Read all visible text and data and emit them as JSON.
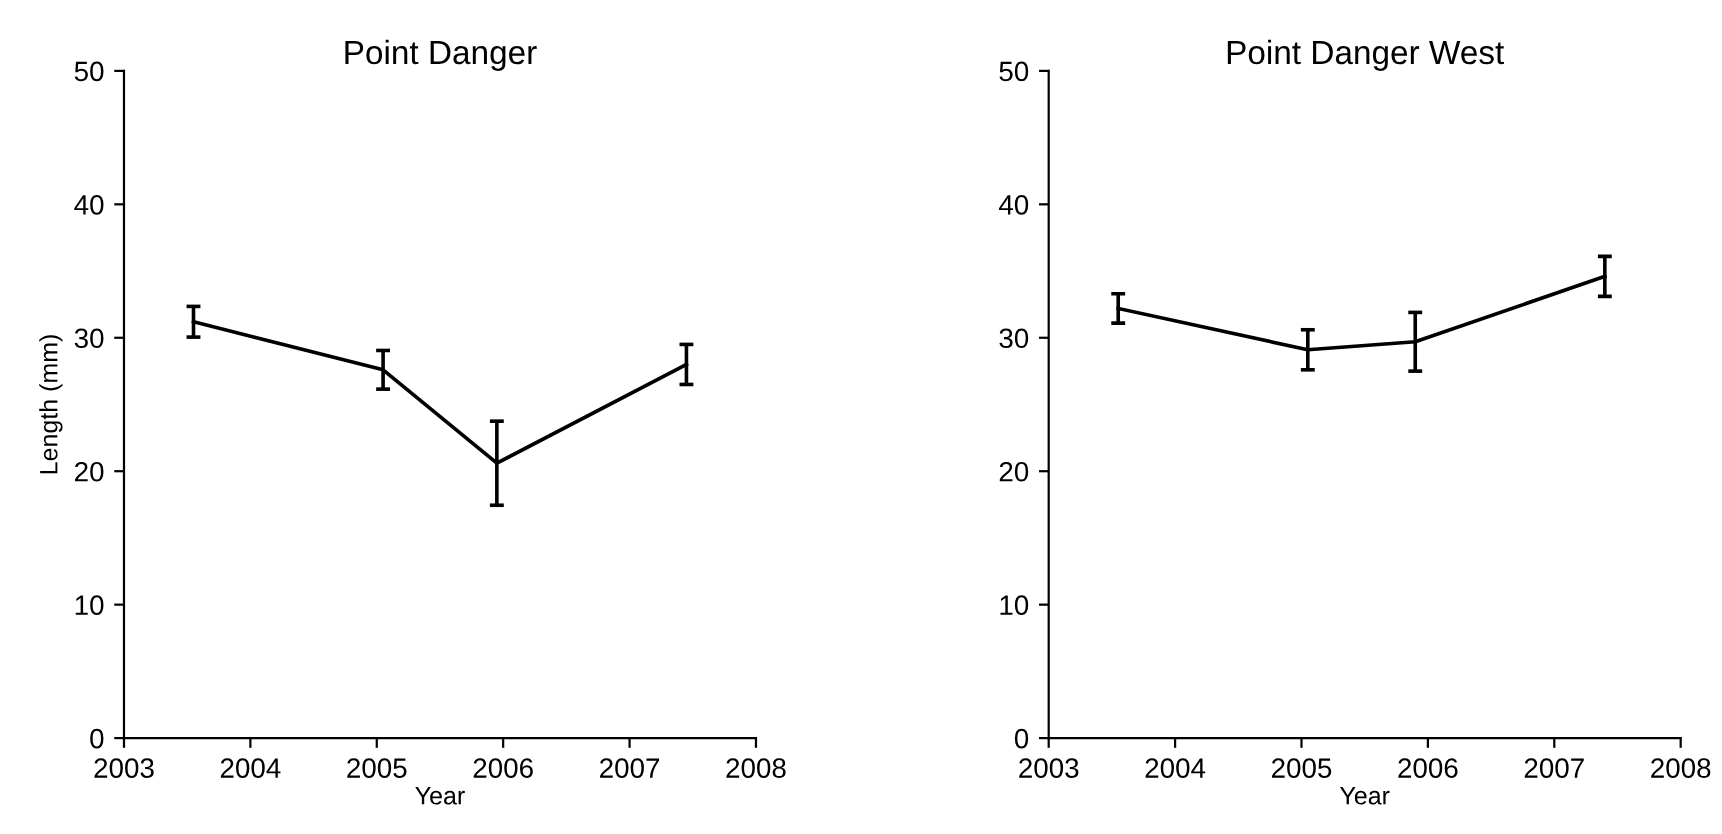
{
  "chart_data": [
    {
      "type": "line",
      "title": "Point Danger",
      "xlabel": "Year",
      "ylabel": "Length (mm)",
      "x": [
        2003.55,
        2005.05,
        2005.95,
        2007.45
      ],
      "values": [
        31.2,
        27.6,
        20.6,
        28.0
      ],
      "errors": [
        1.15,
        1.45,
        3.15,
        1.5
      ],
      "color": "#000000",
      "xlim": [
        2003,
        2008
      ],
      "xticks": [
        2003,
        2004,
        2005,
        2006,
        2007,
        2008
      ],
      "ylim": [
        0,
        50
      ],
      "yticks": [
        0,
        10,
        20,
        30,
        40,
        50
      ]
    },
    {
      "type": "line",
      "title": "Point Danger West",
      "xlabel": "Year",
      "x": [
        2003.55,
        2005.05,
        2005.9,
        2007.4
      ],
      "values": [
        32.2,
        29.1,
        29.7,
        34.6
      ],
      "errors": [
        1.1,
        1.5,
        2.2,
        1.5
      ],
      "color": "#000000",
      "xlim": [
        2003,
        2008
      ],
      "xticks": [
        2003,
        2004,
        2005,
        2006,
        2007,
        2008
      ],
      "ylim": [
        0,
        50
      ],
      "yticks": [
        0,
        10,
        20,
        30,
        40,
        50
      ]
    }
  ]
}
